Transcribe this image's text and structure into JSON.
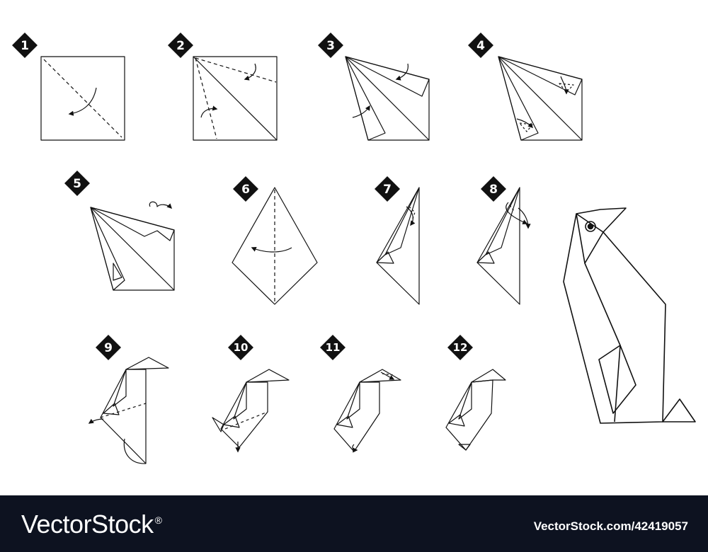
{
  "steps": [
    "1",
    "2",
    "3",
    "4",
    "5",
    "6",
    "7",
    "8",
    "9",
    "10",
    "11",
    "12"
  ],
  "footer": {
    "brand": "VectorStock",
    "brand_mark": "®",
    "image_id": "VectorStock.com/42419057"
  },
  "colors": {
    "line": "#111111",
    "badge": "#111111",
    "footer_bg": "#0d1220",
    "footer_text": "#ffffff"
  }
}
